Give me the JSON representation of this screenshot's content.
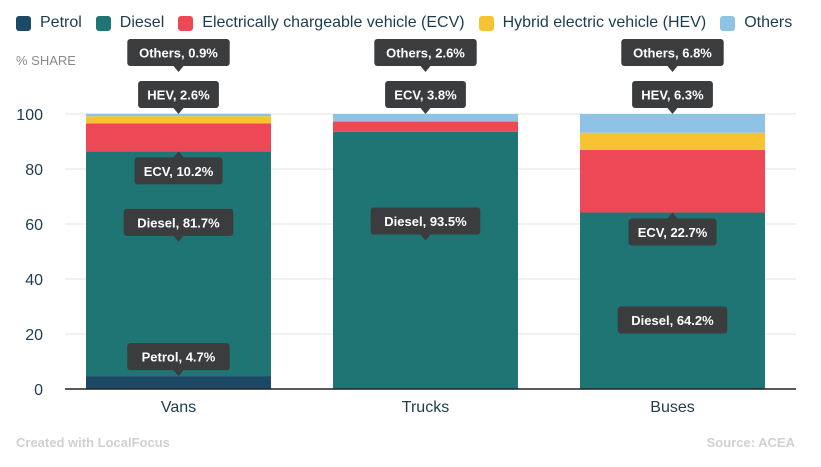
{
  "chart_data": {
    "type": "bar",
    "stacked": true,
    "title": "",
    "xlabel": "",
    "ylabel": "% SHARE",
    "ylim": [
      0,
      100
    ],
    "yticks": [
      0,
      20,
      40,
      60,
      80,
      100
    ],
    "grid": true,
    "legend_position": "top-left",
    "categories": [
      "Vans",
      "Trucks",
      "Buses"
    ],
    "series": [
      {
        "name": "Petrol",
        "color": "#1c4966",
        "values": [
          4.7,
          0,
          0
        ]
      },
      {
        "name": "Diesel",
        "color": "#1f7573",
        "values": [
          81.7,
          93.5,
          64.2
        ]
      },
      {
        "name": "Electrically chargeable vehicle (ECV)",
        "color": "#ee4856",
        "values": [
          10.2,
          3.8,
          22.7
        ]
      },
      {
        "name": "Hybrid electric vehicle (HEV)",
        "color": "#f8c330",
        "values": [
          2.6,
          0.1,
          6.3
        ]
      },
      {
        "name": "Others",
        "color": "#8ec3e6",
        "values": [
          0.9,
          2.6,
          6.8
        ]
      }
    ],
    "annotations": [
      {
        "category": "Vans",
        "series": "Petrol",
        "text": "Petrol, 4.7%"
      },
      {
        "category": "Vans",
        "series": "Diesel",
        "text": "Diesel, 81.7%"
      },
      {
        "category": "Vans",
        "series": "ECV",
        "text": "ECV, 10.2%"
      },
      {
        "category": "Vans",
        "series": "HEV",
        "text": "HEV, 2.6%"
      },
      {
        "category": "Vans",
        "series": "Others",
        "text": "Others, 0.9%"
      },
      {
        "category": "Trucks",
        "series": "Diesel",
        "text": "Diesel, 93.5%"
      },
      {
        "category": "Trucks",
        "series": "ECV",
        "text": "ECV, 3.8%"
      },
      {
        "category": "Trucks",
        "series": "Others",
        "text": "Others, 2.6%"
      },
      {
        "category": "Buses",
        "series": "Diesel",
        "text": "Diesel, 64.2%"
      },
      {
        "category": "Buses",
        "series": "ECV",
        "text": "ECV, 22.7%"
      },
      {
        "category": "Buses",
        "series": "HEV",
        "text": "HEV, 6.3%"
      },
      {
        "category": "Buses",
        "series": "Others",
        "text": "Others, 6.8%"
      }
    ]
  },
  "legend": [
    {
      "label": "Petrol",
      "color": "#1c4966"
    },
    {
      "label": "Diesel",
      "color": "#1f7573"
    },
    {
      "label": "Electrically chargeable vehicle (ECV)",
      "color": "#ee4856"
    },
    {
      "label": "Hybrid electric vehicle (HEV)",
      "color": "#f8c330"
    },
    {
      "label": "Others",
      "color": "#8ec3e6"
    }
  ],
  "footer": {
    "credit": "Created with LocalFocus",
    "source": "Source: ACEA"
  }
}
